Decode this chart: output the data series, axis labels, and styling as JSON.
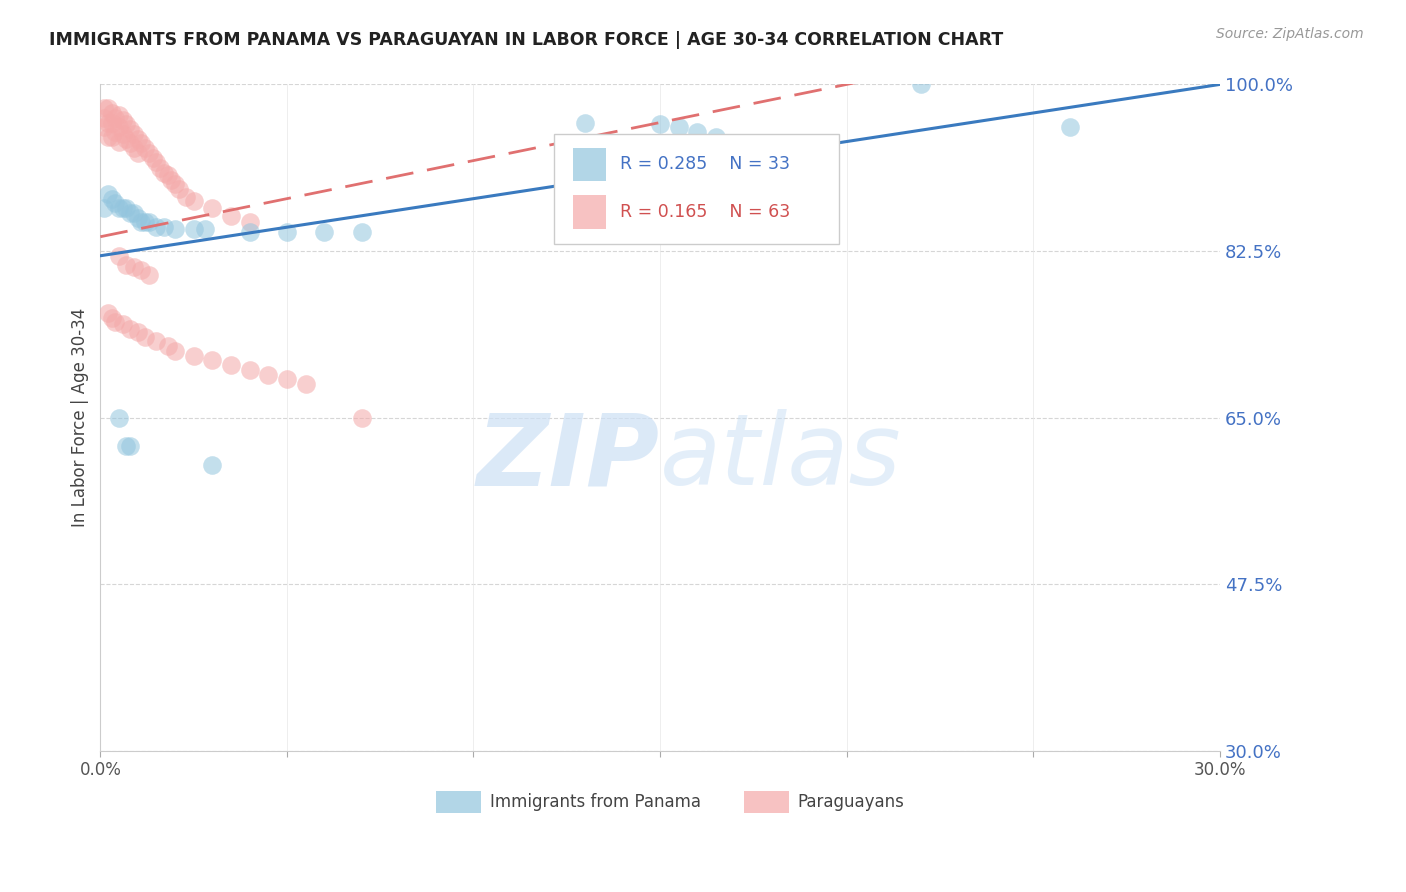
{
  "title": "IMMIGRANTS FROM PANAMA VS PARAGUAYAN IN LABOR FORCE | AGE 30-34 CORRELATION CHART",
  "source": "Source: ZipAtlas.com",
  "ylabel": "In Labor Force | Age 30-34",
  "legend_blue_label": "Immigrants from Panama",
  "legend_pink_label": "Paraguayans",
  "R_blue": 0.285,
  "N_blue": 33,
  "R_pink": 0.165,
  "N_pink": 63,
  "blue_color": "#92c5de",
  "pink_color": "#f4a9a9",
  "blue_line_color": "#3a7abf",
  "pink_line_color": "#e07070",
  "watermark_zip": "ZIP",
  "watermark_atlas": "atlas",
  "y_ticks": [
    0.3,
    0.475,
    0.65,
    0.825,
    1.0
  ],
  "y_tick_labels": [
    "30.0%",
    "47.5%",
    "65.0%",
    "82.5%",
    "100.0%"
  ],
  "xlim": [
    0.0,
    0.3
  ],
  "ylim": [
    0.3,
    1.0
  ],
  "panama_x": [
    0.001,
    0.002,
    0.003,
    0.004,
    0.005,
    0.006,
    0.007,
    0.008,
    0.009,
    0.01,
    0.011,
    0.012,
    0.013,
    0.015,
    0.017,
    0.02,
    0.025,
    0.028,
    0.04,
    0.05,
    0.06,
    0.07,
    0.13,
    0.15,
    0.155,
    0.16,
    0.165,
    0.22,
    0.26,
    0.005,
    0.007,
    0.008,
    0.03
  ],
  "panama_y": [
    0.87,
    0.885,
    0.88,
    0.875,
    0.87,
    0.87,
    0.87,
    0.865,
    0.865,
    0.86,
    0.855,
    0.855,
    0.855,
    0.85,
    0.85,
    0.848,
    0.848,
    0.848,
    0.845,
    0.845,
    0.845,
    0.845,
    0.96,
    0.958,
    0.955,
    0.95,
    0.945,
    1.0,
    0.955,
    0.65,
    0.62,
    0.62,
    0.6
  ],
  "paraguayan_x": [
    0.001,
    0.001,
    0.001,
    0.002,
    0.002,
    0.002,
    0.003,
    0.003,
    0.003,
    0.004,
    0.004,
    0.005,
    0.005,
    0.005,
    0.006,
    0.006,
    0.007,
    0.007,
    0.008,
    0.008,
    0.009,
    0.009,
    0.01,
    0.01,
    0.011,
    0.012,
    0.013,
    0.014,
    0.015,
    0.016,
    0.017,
    0.018,
    0.019,
    0.02,
    0.021,
    0.023,
    0.025,
    0.03,
    0.035,
    0.04,
    0.005,
    0.007,
    0.009,
    0.011,
    0.013,
    0.002,
    0.003,
    0.004,
    0.006,
    0.008,
    0.01,
    0.012,
    0.015,
    0.018,
    0.02,
    0.025,
    0.03,
    0.035,
    0.04,
    0.045,
    0.05,
    0.055,
    0.07
  ],
  "paraguayan_y": [
    0.975,
    0.965,
    0.955,
    0.975,
    0.96,
    0.945,
    0.97,
    0.96,
    0.945,
    0.965,
    0.95,
    0.968,
    0.955,
    0.94,
    0.963,
    0.948,
    0.958,
    0.943,
    0.953,
    0.938,
    0.948,
    0.933,
    0.943,
    0.928,
    0.938,
    0.933,
    0.928,
    0.923,
    0.918,
    0.912,
    0.907,
    0.905,
    0.9,
    0.895,
    0.89,
    0.882,
    0.878,
    0.87,
    0.862,
    0.855,
    0.82,
    0.81,
    0.808,
    0.805,
    0.8,
    0.76,
    0.755,
    0.75,
    0.748,
    0.743,
    0.74,
    0.735,
    0.73,
    0.725,
    0.72,
    0.715,
    0.71,
    0.705,
    0.7,
    0.695,
    0.69,
    0.685,
    0.65
  ]
}
